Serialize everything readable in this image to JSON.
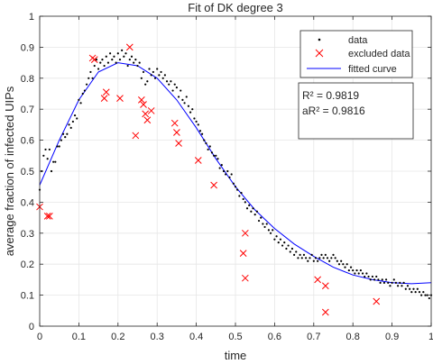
{
  "chart_data": {
    "type": "scatter",
    "title": "Fit of DK degree 3",
    "xlabel": "time",
    "ylabel": "average fraction of infected UIPs",
    "xlim": [
      0,
      1
    ],
    "ylim": [
      0,
      1
    ],
    "xticks": [
      0,
      0.1,
      0.2,
      0.3,
      0.4,
      0.5,
      0.6,
      0.7,
      0.8,
      0.9,
      1
    ],
    "yticks": [
      0,
      0.1,
      0.2,
      0.3,
      0.4,
      0.5,
      0.6,
      0.7,
      0.8,
      0.9,
      1
    ],
    "xtick_labels": [
      "0",
      "0.1",
      "0.2",
      "0.3",
      "0.4",
      "0.5",
      "0.6",
      "0.7",
      "0.8",
      "0.9",
      "1"
    ],
    "ytick_labels": [
      "0",
      "0.1",
      "0.2",
      "0.3",
      "0.4",
      "0.5",
      "0.6",
      "0.7",
      "0.8",
      "0.9",
      "1"
    ],
    "grid": true,
    "legend_position": "top-right",
    "colors": {
      "data": "#000000",
      "excluded": "#ff0000",
      "fit": "#0000ff",
      "grid": "#e6e6e6",
      "axis": "#262626"
    },
    "legend": [
      {
        "label": "data",
        "marker": "dot",
        "color": "#000000"
      },
      {
        "label": "excluded data",
        "marker": "x",
        "color": "#ff0000"
      },
      {
        "label": "fitted curve",
        "marker": "line",
        "color": "#0000ff"
      }
    ],
    "annotations": [
      "R² = 0.9819",
      "aR² = 0.9816"
    ],
    "series": [
      {
        "name": "data",
        "marker": "dot",
        "points": [
          [
            0.0,
            0.44
          ],
          [
            0.005,
            0.5
          ],
          [
            0.01,
            0.55
          ],
          [
            0.015,
            0.57
          ],
          [
            0.02,
            0.54
          ],
          [
            0.025,
            0.57
          ],
          [
            0.03,
            0.5
          ],
          [
            0.035,
            0.53
          ],
          [
            0.04,
            0.53
          ],
          [
            0.045,
            0.58
          ],
          [
            0.05,
            0.58
          ],
          [
            0.055,
            0.6
          ],
          [
            0.06,
            0.62
          ],
          [
            0.065,
            0.61
          ],
          [
            0.07,
            0.62
          ],
          [
            0.075,
            0.65
          ],
          [
            0.08,
            0.64
          ],
          [
            0.085,
            0.66
          ],
          [
            0.09,
            0.68
          ],
          [
            0.095,
            0.67
          ],
          [
            0.1,
            0.73
          ],
          [
            0.105,
            0.72
          ],
          [
            0.11,
            0.75
          ],
          [
            0.115,
            0.76
          ],
          [
            0.12,
            0.78
          ],
          [
            0.125,
            0.8
          ],
          [
            0.13,
            0.82
          ],
          [
            0.135,
            0.8
          ],
          [
            0.14,
            0.84
          ],
          [
            0.145,
            0.86
          ],
          [
            0.15,
            0.83
          ],
          [
            0.155,
            0.85
          ],
          [
            0.16,
            0.86
          ],
          [
            0.165,
            0.84
          ],
          [
            0.17,
            0.87
          ],
          [
            0.175,
            0.85
          ],
          [
            0.18,
            0.88
          ],
          [
            0.185,
            0.86
          ],
          [
            0.19,
            0.87
          ],
          [
            0.195,
            0.85
          ],
          [
            0.2,
            0.88
          ],
          [
            0.205,
            0.86
          ],
          [
            0.21,
            0.89
          ],
          [
            0.215,
            0.87
          ],
          [
            0.22,
            0.88
          ],
          [
            0.225,
            0.84
          ],
          [
            0.23,
            0.86
          ],
          [
            0.235,
            0.87
          ],
          [
            0.24,
            0.85
          ],
          [
            0.245,
            0.86
          ],
          [
            0.25,
            0.84
          ],
          [
            0.255,
            0.85
          ],
          [
            0.26,
            0.8
          ],
          [
            0.265,
            0.82
          ],
          [
            0.27,
            0.78
          ],
          [
            0.275,
            0.79
          ],
          [
            0.28,
            0.83
          ],
          [
            0.285,
            0.81
          ],
          [
            0.29,
            0.82
          ],
          [
            0.295,
            0.8
          ],
          [
            0.3,
            0.83
          ],
          [
            0.305,
            0.81
          ],
          [
            0.31,
            0.82
          ],
          [
            0.315,
            0.8
          ],
          [
            0.32,
            0.81
          ],
          [
            0.325,
            0.79
          ],
          [
            0.33,
            0.78
          ],
          [
            0.335,
            0.79
          ],
          [
            0.34,
            0.76
          ],
          [
            0.345,
            0.78
          ],
          [
            0.35,
            0.77
          ],
          [
            0.355,
            0.74
          ],
          [
            0.36,
            0.76
          ],
          [
            0.365,
            0.73
          ],
          [
            0.37,
            0.72
          ],
          [
            0.375,
            0.74
          ],
          [
            0.38,
            0.71
          ],
          [
            0.385,
            0.69
          ],
          [
            0.39,
            0.7
          ],
          [
            0.395,
            0.67
          ],
          [
            0.4,
            0.66
          ],
          [
            0.405,
            0.65
          ],
          [
            0.41,
            0.63
          ],
          [
            0.415,
            0.62
          ],
          [
            0.42,
            0.6
          ],
          [
            0.425,
            0.59
          ],
          [
            0.43,
            0.57
          ],
          [
            0.435,
            0.58
          ],
          [
            0.44,
            0.56
          ],
          [
            0.445,
            0.55
          ],
          [
            0.45,
            0.55
          ],
          [
            0.455,
            0.54
          ],
          [
            0.46,
            0.51
          ],
          [
            0.465,
            0.52
          ],
          [
            0.47,
            0.5
          ],
          [
            0.475,
            0.49
          ],
          [
            0.48,
            0.5
          ],
          [
            0.485,
            0.48
          ],
          [
            0.49,
            0.49
          ],
          [
            0.495,
            0.46
          ],
          [
            0.5,
            0.45
          ],
          [
            0.505,
            0.44
          ],
          [
            0.51,
            0.42
          ],
          [
            0.515,
            0.43
          ],
          [
            0.52,
            0.41
          ],
          [
            0.525,
            0.4
          ],
          [
            0.53,
            0.38
          ],
          [
            0.535,
            0.39
          ],
          [
            0.54,
            0.37
          ],
          [
            0.545,
            0.38
          ],
          [
            0.55,
            0.36
          ],
          [
            0.555,
            0.37
          ],
          [
            0.56,
            0.34
          ],
          [
            0.565,
            0.35
          ],
          [
            0.57,
            0.33
          ],
          [
            0.575,
            0.32
          ],
          [
            0.58,
            0.33
          ],
          [
            0.585,
            0.31
          ],
          [
            0.59,
            0.3
          ],
          [
            0.595,
            0.31
          ],
          [
            0.6,
            0.28
          ],
          [
            0.605,
            0.29
          ],
          [
            0.61,
            0.27
          ],
          [
            0.615,
            0.28
          ],
          [
            0.62,
            0.26
          ],
          [
            0.625,
            0.27
          ],
          [
            0.63,
            0.25
          ],
          [
            0.635,
            0.26
          ],
          [
            0.64,
            0.24
          ],
          [
            0.645,
            0.25
          ],
          [
            0.65,
            0.23
          ],
          [
            0.655,
            0.24
          ],
          [
            0.66,
            0.22
          ],
          [
            0.665,
            0.23
          ],
          [
            0.67,
            0.22
          ],
          [
            0.675,
            0.23
          ],
          [
            0.68,
            0.22
          ],
          [
            0.685,
            0.21
          ],
          [
            0.69,
            0.22
          ],
          [
            0.695,
            0.23
          ],
          [
            0.7,
            0.21
          ],
          [
            0.705,
            0.22
          ],
          [
            0.71,
            0.21
          ],
          [
            0.715,
            0.22
          ],
          [
            0.72,
            0.23
          ],
          [
            0.725,
            0.22
          ],
          [
            0.73,
            0.23
          ],
          [
            0.735,
            0.22
          ],
          [
            0.74,
            0.21
          ],
          [
            0.745,
            0.22
          ],
          [
            0.75,
            0.23
          ],
          [
            0.755,
            0.22
          ],
          [
            0.76,
            0.21
          ],
          [
            0.765,
            0.2
          ],
          [
            0.77,
            0.21
          ],
          [
            0.775,
            0.2
          ],
          [
            0.78,
            0.19
          ],
          [
            0.785,
            0.2
          ],
          [
            0.79,
            0.18
          ],
          [
            0.795,
            0.19
          ],
          [
            0.8,
            0.18
          ],
          [
            0.805,
            0.17
          ],
          [
            0.81,
            0.18
          ],
          [
            0.815,
            0.17
          ],
          [
            0.82,
            0.18
          ],
          [
            0.825,
            0.17
          ],
          [
            0.83,
            0.16
          ],
          [
            0.835,
            0.17
          ],
          [
            0.84,
            0.16
          ],
          [
            0.845,
            0.15
          ],
          [
            0.85,
            0.16
          ],
          [
            0.855,
            0.15
          ],
          [
            0.86,
            0.16
          ],
          [
            0.865,
            0.15
          ],
          [
            0.87,
            0.14
          ],
          [
            0.875,
            0.15
          ],
          [
            0.88,
            0.14
          ],
          [
            0.885,
            0.15
          ],
          [
            0.89,
            0.14
          ],
          [
            0.895,
            0.13
          ],
          [
            0.9,
            0.14
          ],
          [
            0.905,
            0.15
          ],
          [
            0.91,
            0.14
          ],
          [
            0.915,
            0.13
          ],
          [
            0.92,
            0.14
          ],
          [
            0.925,
            0.13
          ],
          [
            0.93,
            0.14
          ],
          [
            0.935,
            0.12
          ],
          [
            0.94,
            0.13
          ],
          [
            0.945,
            0.12
          ],
          [
            0.95,
            0.11
          ],
          [
            0.955,
            0.12
          ],
          [
            0.96,
            0.11
          ],
          [
            0.965,
            0.12
          ],
          [
            0.97,
            0.11
          ],
          [
            0.975,
            0.1
          ],
          [
            0.98,
            0.11
          ],
          [
            0.985,
            0.1
          ],
          [
            0.99,
            0.1
          ],
          [
            0.995,
            0.09
          ],
          [
            1.0,
            0.1
          ]
        ]
      },
      {
        "name": "excluded data",
        "marker": "x",
        "points": [
          [
            0.0,
            0.385
          ],
          [
            0.02,
            0.355
          ],
          [
            0.025,
            0.355
          ],
          [
            0.135,
            0.865
          ],
          [
            0.14,
            0.86
          ],
          [
            0.165,
            0.735
          ],
          [
            0.17,
            0.755
          ],
          [
            0.205,
            0.735
          ],
          [
            0.23,
            0.9
          ],
          [
            0.245,
            0.615
          ],
          [
            0.26,
            0.73
          ],
          [
            0.265,
            0.715
          ],
          [
            0.27,
            0.685
          ],
          [
            0.275,
            0.665
          ],
          [
            0.285,
            0.695
          ],
          [
            0.345,
            0.655
          ],
          [
            0.35,
            0.625
          ],
          [
            0.355,
            0.59
          ],
          [
            0.405,
            0.535
          ],
          [
            0.445,
            0.455
          ],
          [
            0.52,
            0.235
          ],
          [
            0.525,
            0.3
          ],
          [
            0.525,
            0.155
          ],
          [
            0.71,
            0.15
          ],
          [
            0.73,
            0.13
          ],
          [
            0.73,
            0.045
          ],
          [
            0.86,
            0.08
          ]
        ]
      },
      {
        "name": "fitted curve",
        "marker": "line",
        "points": [
          [
            0.0,
            0.455
          ],
          [
            0.05,
            0.6
          ],
          [
            0.1,
            0.73
          ],
          [
            0.15,
            0.82
          ],
          [
            0.2,
            0.85
          ],
          [
            0.25,
            0.84
          ],
          [
            0.3,
            0.8
          ],
          [
            0.35,
            0.73
          ],
          [
            0.4,
            0.64
          ],
          [
            0.45,
            0.54
          ],
          [
            0.5,
            0.45
          ],
          [
            0.55,
            0.375
          ],
          [
            0.6,
            0.315
          ],
          [
            0.65,
            0.265
          ],
          [
            0.7,
            0.225
          ],
          [
            0.75,
            0.19
          ],
          [
            0.8,
            0.165
          ],
          [
            0.85,
            0.15
          ],
          [
            0.9,
            0.14
          ],
          [
            0.95,
            0.137
          ],
          [
            1.0,
            0.14
          ]
        ]
      }
    ]
  }
}
